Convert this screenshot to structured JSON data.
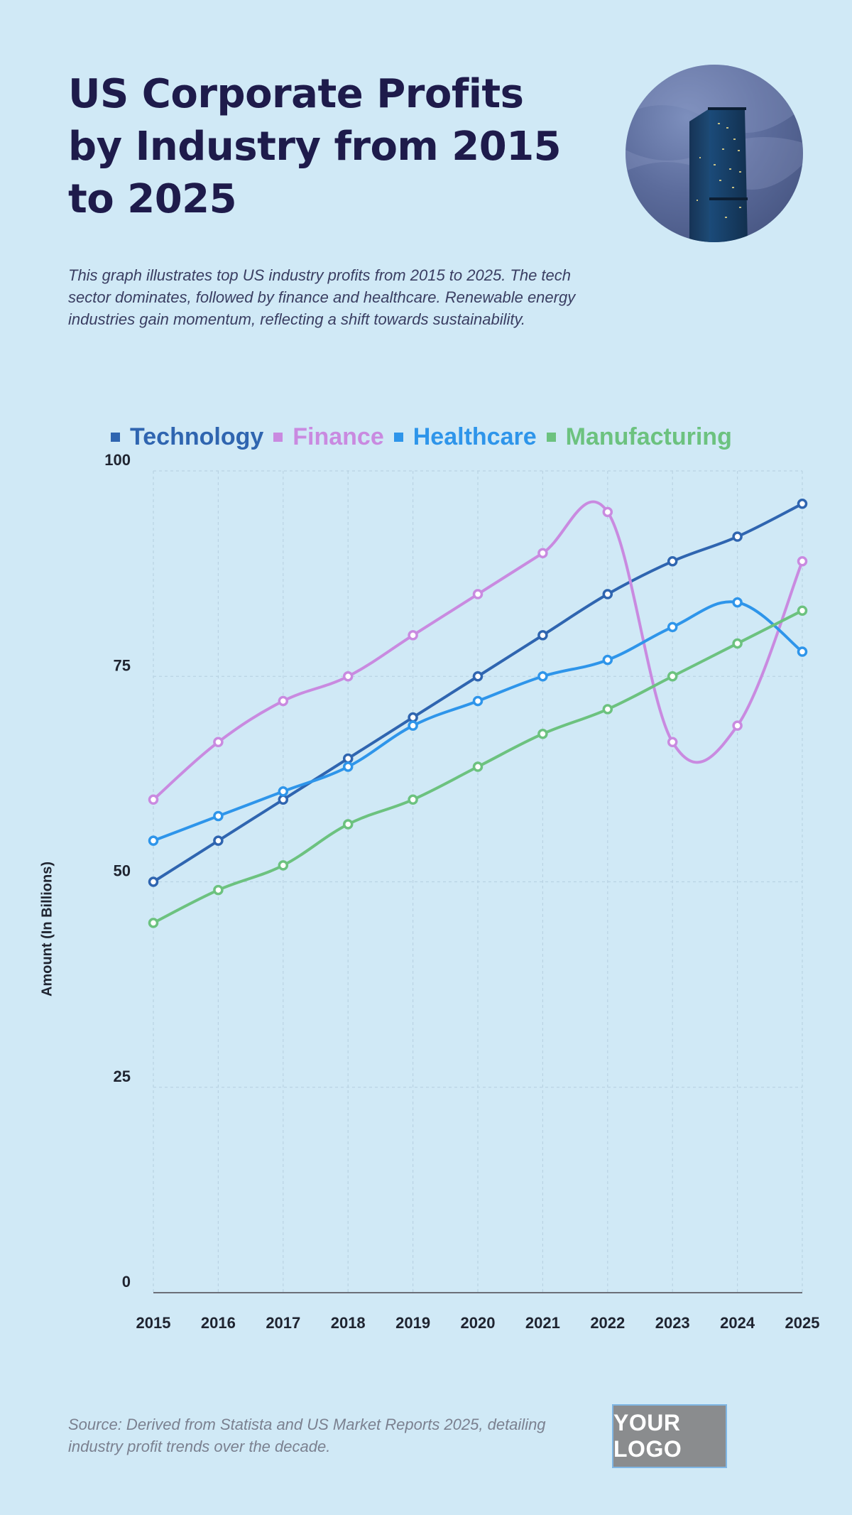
{
  "header": {
    "title": "US Corporate Profits by Industry from 2015 to 2025",
    "subtitle": "This graph illustrates top US industry profits from 2015 to 2025. The tech sector dominates, followed by finance and healthcare. Renewable energy industries gain momentum, reflecting a shift towards sustainability.",
    "photo": "skyscraper-photo"
  },
  "legend": [
    {
      "label": "Technology",
      "color": "#2f65b0"
    },
    {
      "label": "Finance",
      "color": "#c98ae0"
    },
    {
      "label": "Healthcare",
      "color": "#2e95ea"
    },
    {
      "label": "Manufacturing",
      "color": "#6cc27f"
    }
  ],
  "footer": {
    "source": "Source: Derived from Statista and US Market Reports 2025, detailing industry profit trends over the decade.",
    "logo": "YOUR LOGO"
  },
  "chart_data": {
    "type": "line",
    "title": "US Corporate Profits by Industry from 2015 to 2025",
    "xlabel": "",
    "ylabel": "Amount (In Billions)",
    "x": [
      "2015",
      "2016",
      "2017",
      "2018",
      "2019",
      "2020",
      "2021",
      "2022",
      "2023",
      "2024",
      "2025"
    ],
    "ylim": [
      0,
      100
    ],
    "yticks": [
      0,
      25,
      50,
      75,
      100
    ],
    "grid": true,
    "legend_position": "top",
    "series": [
      {
        "name": "Technology",
        "color": "#2f65b0",
        "values": [
          50,
          55,
          60,
          65,
          70,
          75,
          80,
          85,
          89,
          92,
          96
        ]
      },
      {
        "name": "Finance",
        "color": "#c98ae0",
        "values": [
          60,
          67,
          72,
          75,
          80,
          85,
          90,
          95,
          67,
          69,
          89
        ]
      },
      {
        "name": "Healthcare",
        "color": "#2e95ea",
        "values": [
          55,
          58,
          61,
          64,
          69,
          72,
          75,
          77,
          81,
          84,
          78
        ]
      },
      {
        "name": "Manufacturing",
        "color": "#6cc27f",
        "values": [
          45,
          49,
          52,
          57,
          60,
          64,
          68,
          71,
          75,
          79,
          83
        ]
      }
    ]
  }
}
